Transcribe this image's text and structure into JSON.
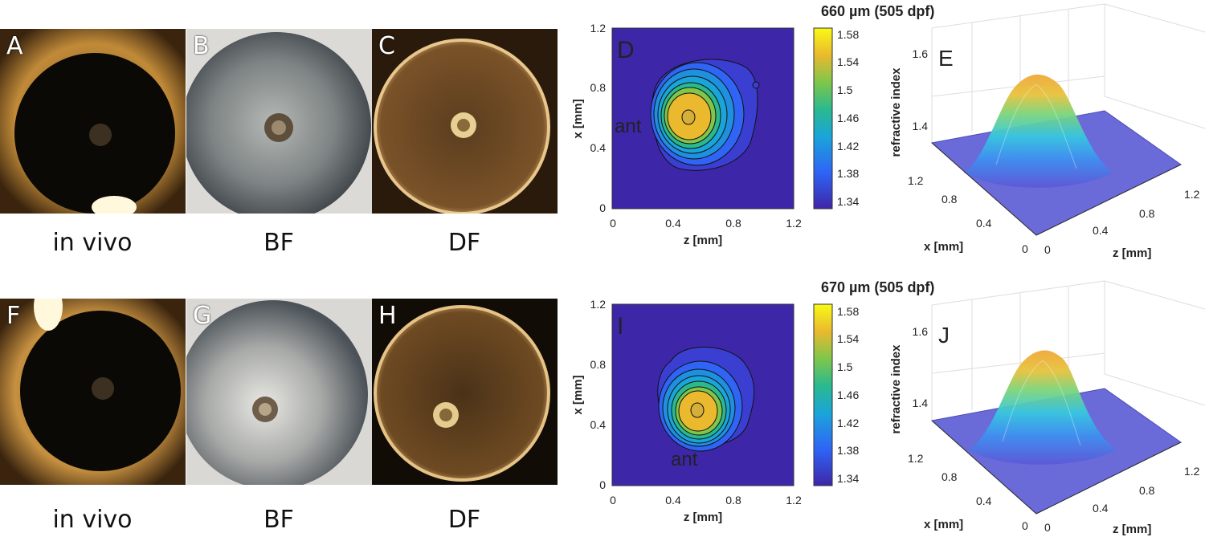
{
  "rows": [
    {
      "photos": [
        {
          "label": "A",
          "caption": "in vivo",
          "bg": "#1b1008",
          "lens": "#0a0805",
          "rim": "#b57a32",
          "core": "#5b4a35"
        },
        {
          "label": "B",
          "caption": "BF",
          "bg": "#d8d6d2",
          "lens": "#8d9190",
          "rim": "#39424a",
          "core": "#6b5a48"
        },
        {
          "label": "C",
          "caption": "DF",
          "bg": "#2a1a0c",
          "lens": "#4a3318",
          "rim": "#e7c487",
          "core": "#e9d39a"
        }
      ],
      "map": {
        "label": "D",
        "annotation": "ant",
        "title": "660 µm (505 dpf)",
        "xlabel": "z [mm]",
        "ylabel": "x [mm]",
        "xticks": [
          "0",
          "0.4",
          "0.8",
          "1.2"
        ],
        "yticks": [
          "0",
          "0.4",
          "0.8",
          "1.2"
        ],
        "colorbar_ticks": [
          "1.58",
          "1.54",
          "1.5",
          "1.46",
          "1.42",
          "1.38",
          "1.34"
        ]
      },
      "surface": {
        "label": "E",
        "zlabel": "refractive index",
        "zticks": [
          "1.6",
          "1.4"
        ],
        "x_ticks": [
          "1.2",
          "0.8",
          "0.4",
          "0"
        ],
        "x_label": "x [mm]",
        "z_ticks": [
          "0",
          "0.4",
          "0.8",
          "1.2"
        ],
        "z_label": "z [mm]"
      }
    },
    {
      "photos": [
        {
          "label": "F",
          "caption": "in vivo",
          "bg": "#1f1409",
          "lens": "#0a0805",
          "rim": "#c08a3a",
          "core": "#5b4a35"
        },
        {
          "label": "G",
          "caption": "BF",
          "bg": "#d6d4d0",
          "lens": "#9b9d9b",
          "rim": "#3f474e",
          "core": "#6e5d4a"
        },
        {
          "label": "H",
          "caption": "DF",
          "bg": "#120c06",
          "lens": "#4a3218",
          "rim": "#e3be80",
          "core": "#e6cf92"
        }
      ],
      "map": {
        "label": "I",
        "annotation": "ant",
        "title": "670 µm (505 dpf)",
        "xlabel": "z [mm]",
        "ylabel": "x [mm]",
        "xticks": [
          "0",
          "0.4",
          "0.8",
          "1.2"
        ],
        "yticks": [
          "0",
          "0.4",
          "0.8",
          "1.2"
        ],
        "colorbar_ticks": [
          "1.58",
          "1.54",
          "1.5",
          "1.46",
          "1.42",
          "1.38",
          "1.34"
        ]
      },
      "surface": {
        "label": "J",
        "zlabel": "refractive index",
        "zticks": [
          "1.6",
          "1.4"
        ],
        "x_ticks": [
          "1.2",
          "0.8",
          "0.4",
          "0"
        ],
        "x_label": "x [mm]",
        "z_ticks": [
          "0",
          "0.4",
          "0.8",
          "1.2"
        ],
        "z_label": "z [mm]"
      }
    }
  ],
  "chart_data": [
    {
      "type": "heatmap",
      "title": "660 µm (505 dpf)",
      "xlabel": "z [mm]",
      "ylabel": "x [mm]",
      "xlim": [
        0,
        1.2
      ],
      "ylim": [
        0,
        1.2
      ],
      "clim": [
        1.33,
        1.59
      ],
      "peak": {
        "z": 0.48,
        "x": 0.6,
        "value": 1.58
      },
      "annotation": "ant"
    },
    {
      "type": "heatmap",
      "title": "670 µm (505 dpf)",
      "xlabel": "z [mm]",
      "ylabel": "x [mm]",
      "xlim": [
        0,
        1.2
      ],
      "ylim": [
        0,
        1.2
      ],
      "clim": [
        1.33,
        1.59
      ],
      "peak": {
        "z": 0.58,
        "x": 0.48,
        "value": 1.58
      },
      "annotation": "ant"
    }
  ]
}
